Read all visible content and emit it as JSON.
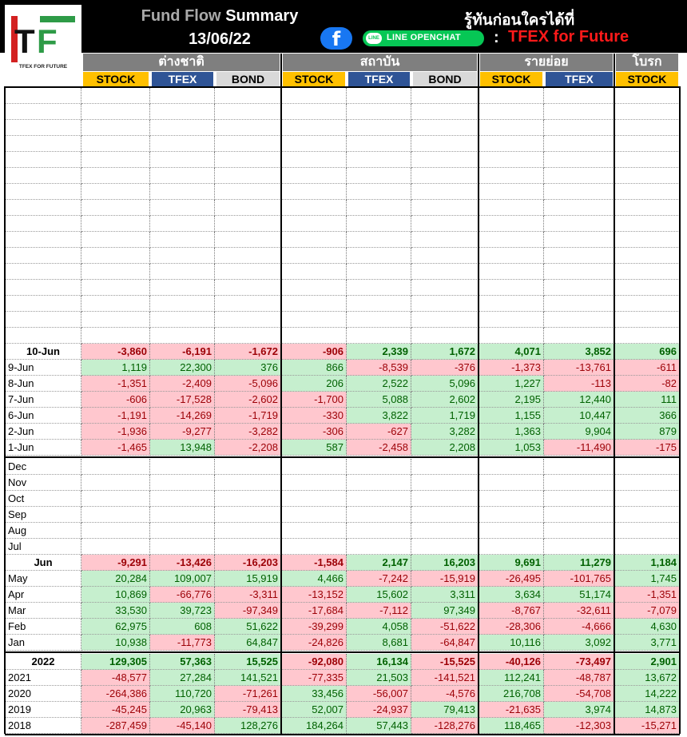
{
  "header": {
    "title_gray": "Fund Flow",
    "title_white": "Summary",
    "date": "13/06/22",
    "slogan": "รู้ทันก่อนใครได้ที่",
    "fb_icon": "f",
    "line_label": "LINE OPENCHAT",
    "line_bubble": "LINE",
    "colon": ":",
    "tfex_future": "TFEX for Future",
    "logo_tagline": "TFEX FOR FUTURE"
  },
  "groups": [
    "ต่างชาติ",
    "สถาบัน",
    "รายย่อย",
    "โบรก"
  ],
  "columns": [
    "STOCK",
    "TFEX",
    "BOND",
    "STOCK",
    "TFEX",
    "BOND",
    "STOCK",
    "TFEX",
    "STOCK"
  ],
  "colors": {
    "positive_bg": "#c6efce",
    "positive_text": "#006100",
    "negative_bg": "#ffc7ce",
    "negative_text": "#9c0006",
    "stock": "#ffc000",
    "tfex": "#2f5496",
    "bond": "#d9d9d9"
  },
  "daily": [
    {
      "label": "10-Jun",
      "bold": true,
      "values": [
        "-3,860",
        "-6,191",
        "-1,672",
        "-906",
        "2,339",
        "1,672",
        "4,071",
        "3,852",
        "696"
      ]
    },
    {
      "label": "9-Jun",
      "values": [
        "1,119",
        "22,300",
        "376",
        "866",
        "-8,539",
        "-376",
        "-1,373",
        "-13,761",
        "-611"
      ]
    },
    {
      "label": "8-Jun",
      "values": [
        "-1,351",
        "-2,409",
        "-5,096",
        "206",
        "2,522",
        "5,096",
        "1,227",
        "-113",
        "-82"
      ]
    },
    {
      "label": "7-Jun",
      "values": [
        "-606",
        "-17,528",
        "-2,602",
        "-1,700",
        "5,088",
        "2,602",
        "2,195",
        "12,440",
        "111"
      ]
    },
    {
      "label": "6-Jun",
      "values": [
        "-1,191",
        "-14,269",
        "-1,719",
        "-330",
        "3,822",
        "1,719",
        "1,155",
        "10,447",
        "366"
      ]
    },
    {
      "label": "2-Jun",
      "values": [
        "-1,936",
        "-9,277",
        "-3,282",
        "-306",
        "-627",
        "3,282",
        "1,363",
        "9,904",
        "879"
      ]
    },
    {
      "label": "1-Jun",
      "values": [
        "-1,465",
        "13,948",
        "-2,208",
        "587",
        "-2,458",
        "2,208",
        "1,053",
        "-11,490",
        "-175"
      ]
    }
  ],
  "monthly": [
    {
      "label": "Dec",
      "values": []
    },
    {
      "label": "Nov",
      "values": []
    },
    {
      "label": "Oct",
      "values": []
    },
    {
      "label": "Sep",
      "values": []
    },
    {
      "label": "Aug",
      "values": []
    },
    {
      "label": "Jul",
      "values": []
    },
    {
      "label": "Jun",
      "bold": true,
      "values": [
        "-9,291",
        "-13,426",
        "-16,203",
        "-1,584",
        "2,147",
        "16,203",
        "9,691",
        "11,279",
        "1,184"
      ]
    },
    {
      "label": "May",
      "values": [
        "20,284",
        "109,007",
        "15,919",
        "4,466",
        "-7,242",
        "-15,919",
        "-26,495",
        "-101,765",
        "1,745"
      ]
    },
    {
      "label": "Apr",
      "values": [
        "10,869",
        "-66,776",
        "-3,311",
        "-13,152",
        "15,602",
        "3,311",
        "3,634",
        "51,174",
        "-1,351"
      ]
    },
    {
      "label": "Mar",
      "values": [
        "33,530",
        "39,723",
        "-97,349",
        "-17,684",
        "-7,112",
        "97,349",
        "-8,767",
        "-32,611",
        "-7,079"
      ]
    },
    {
      "label": "Feb",
      "values": [
        "62,975",
        "608",
        "51,622",
        "-39,299",
        "4,058",
        "-51,622",
        "-28,306",
        "-4,666",
        "4,630"
      ]
    },
    {
      "label": "Jan",
      "values": [
        "10,938",
        "-11,773",
        "64,847",
        "-24,826",
        "8,681",
        "-64,847",
        "10,116",
        "3,092",
        "3,771"
      ]
    }
  ],
  "yearly": [
    {
      "label": "2022",
      "bold": true,
      "values": [
        "129,305",
        "57,363",
        "15,525",
        "-92,080",
        "16,134",
        "-15,525",
        "-40,126",
        "-73,497",
        "2,901"
      ]
    },
    {
      "label": "2021",
      "values": [
        "-48,577",
        "27,284",
        "141,521",
        "-77,335",
        "21,503",
        "-141,521",
        "112,241",
        "-48,787",
        "13,672"
      ]
    },
    {
      "label": "2020",
      "values": [
        "-264,386",
        "110,720",
        "-71,261",
        "33,456",
        "-56,007",
        "-4,576",
        "216,708",
        "-54,708",
        "14,222"
      ]
    },
    {
      "label": "2019",
      "values": [
        "-45,245",
        "20,963",
        "-79,413",
        "52,007",
        "-24,937",
        "79,413",
        "-21,635",
        "3,974",
        "14,873"
      ]
    },
    {
      "label": "2018",
      "values": [
        "-287,459",
        "-45,140",
        "128,276",
        "184,264",
        "57,443",
        "-128,276",
        "118,465",
        "-12,303",
        "-15,271"
      ]
    }
  ]
}
